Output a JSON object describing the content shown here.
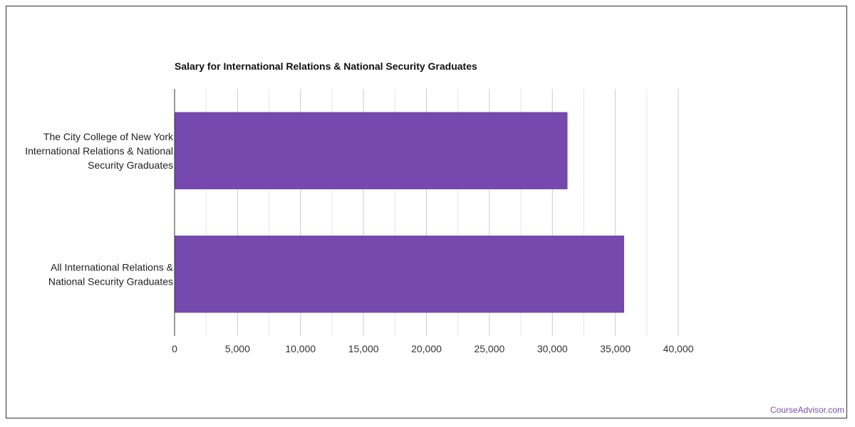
{
  "chart_data": {
    "type": "bar",
    "orientation": "horizontal",
    "title": "Salary for International Relations & National Security Graduates",
    "categories": [
      [
        "The City College of New York",
        "International Relations & National",
        "Security Graduates"
      ],
      [
        "All International Relations &",
        "National Security Graduates"
      ]
    ],
    "values": [
      31200,
      35700
    ],
    "xlim": [
      0,
      40000
    ],
    "ticks": [
      0,
      5000,
      10000,
      15000,
      20000,
      25000,
      30000,
      35000,
      40000
    ],
    "tick_labels": [
      "0",
      "5,000",
      "10,000",
      "15,000",
      "20,000",
      "25,000",
      "30,000",
      "35,000",
      "40,000"
    ],
    "bar_color": "#7549ad",
    "grid": true
  },
  "watermark": "CourseAdvisor.com"
}
